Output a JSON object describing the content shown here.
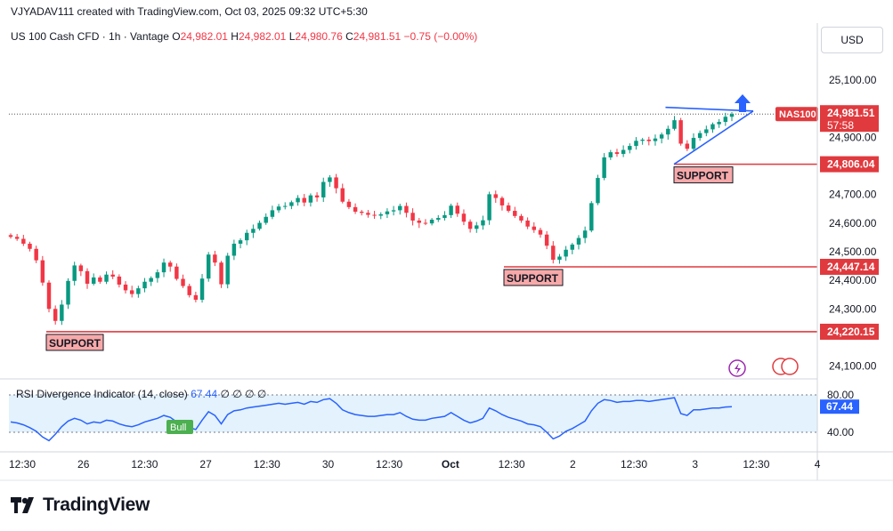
{
  "header": {
    "attribution": "VJYADAV111 created with TradingView.com, Oct 03, 2025 09:32 UTC+5:30",
    "symbol_desc": "US 100 Cash CFD · 1h · Vantage",
    "o_label": "O",
    "o_value": "24,982.01",
    "h_label": "H",
    "h_value": "24,982.01",
    "l_label": "L",
    "l_value": "24,980.76",
    "c_label": "C",
    "c_value": "24,981.51",
    "change": "−0.75 (−0.00%)"
  },
  "currency_button": "USD",
  "price_scale": {
    "ticks": [
      "25,100.00",
      "24,900.00",
      "24,700.00",
      "24,600.00",
      "24,500.00",
      "24,400.00",
      "24,300.00",
      "24,100.00"
    ],
    "tick_values": [
      25100,
      24900,
      24700,
      24600,
      24500,
      24400,
      24300,
      24100
    ],
    "symbol_tag": "NAS100",
    "last_price": "24,981.51",
    "last_value": 24981.51,
    "countdown": "57:58"
  },
  "time_axis": {
    "labels": [
      "12:30",
      "26",
      "12:30",
      "27",
      "12:30",
      "30",
      "12:30",
      "Oct",
      "12:30",
      "2",
      "12:30",
      "3",
      "12:30",
      "4"
    ],
    "bold": [
      false,
      false,
      false,
      false,
      false,
      false,
      false,
      true,
      false,
      false,
      false,
      false,
      false,
      false
    ]
  },
  "support_levels": [
    {
      "label": "SUPPORT",
      "price": "24,806.04",
      "value": 24806.04
    },
    {
      "label": "SUPPORT",
      "price": "24,447.14",
      "value": 24447.14
    },
    {
      "label": "SUPPORT",
      "price": "24,220.15",
      "value": 24220.15
    }
  ],
  "rsi": {
    "name": "RSI Divergence Indicator",
    "params": "(14, close)",
    "value": "67.44",
    "value_num": 67.44,
    "placeholders": "∅ ∅ ∅ ∅",
    "upper_band": "80.00",
    "lower_band": "40.00",
    "bull_label": "Bull"
  },
  "colors": {
    "up": "#089981",
    "down": "#f23645",
    "support": "#e03a3e",
    "rsi": "#2962ff",
    "band_fill": "#e3f2fd",
    "label_bg": "#f7a9a9",
    "bull": "#4caf50"
  },
  "icons": [
    "lightning-icon",
    "us-flag-icon",
    "up-arrow-icon",
    "tradingview-logo-icon"
  ],
  "brand": {
    "name": "TradingView"
  },
  "chart_data": [
    {
      "type": "candlestick",
      "title": "",
      "ylim": [
        24080,
        25200
      ],
      "trendline": "ascending triangle into last price (24,981.51)",
      "closes": [
        24552,
        24545,
        24528,
        24510,
        24470,
        24392,
        24300,
        24258,
        24315,
        24398,
        24452,
        24432,
        24388,
        24410,
        24395,
        24420,
        24413,
        24385,
        24365,
        24352,
        24372,
        24395,
        24408,
        24428,
        24462,
        24448,
        24405,
        24380,
        24348,
        24332,
        24406,
        24490,
        24462,
        24386,
        24486,
        24528,
        24540,
        24566,
        24580,
        24601,
        24622,
        24645,
        24658,
        24660,
        24673,
        24688,
        24672,
        24697,
        24690,
        24744,
        24760,
        24722,
        24675,
        24656,
        24640,
        24636,
        24629,
        24626,
        24631,
        24641,
        24645,
        24660,
        24636,
        24609,
        24601,
        24599,
        24612,
        24618,
        24628,
        24661,
        24633,
        24605,
        24580,
        24592,
        24610,
        24701,
        24688,
        24662,
        24643,
        24625,
        24609,
        24588,
        24576,
        24560,
        24521,
        24472,
        24483,
        24507,
        24525,
        24548,
        24574,
        24670,
        24758,
        24830,
        24848,
        24842,
        24856,
        24870,
        24888,
        24892,
        24887,
        24896,
        24910,
        24930,
        24960,
        24878,
        24860,
        24898,
        24915,
        24928,
        24946,
        24954,
        24972,
        24981.51
      ],
      "rsi_values": [
        51,
        50,
        48,
        45,
        41,
        35,
        31,
        38,
        46,
        52,
        55,
        53,
        49,
        51,
        50,
        53,
        52,
        49,
        47,
        46,
        48,
        51,
        53,
        55,
        58,
        56,
        51,
        48,
        45,
        43,
        53,
        62,
        58,
        49,
        59,
        63,
        64,
        66,
        67,
        68,
        69,
        70,
        71,
        70,
        71,
        72,
        70,
        73,
        72,
        75,
        76,
        71,
        64,
        61,
        59,
        58,
        57,
        57,
        58,
        59,
        59,
        61,
        57,
        54,
        53,
        53,
        55,
        56,
        57,
        61,
        57,
        53,
        50,
        52,
        55,
        66,
        63,
        59,
        56,
        54,
        52,
        49,
        48,
        46,
        40,
        33,
        36,
        41,
        44,
        48,
        52,
        63,
        71,
        75,
        74,
        72,
        73,
        73,
        74,
        74,
        73,
        74,
        75,
        76,
        77,
        60,
        58,
        64,
        64,
        65,
        66,
        66,
        67,
        67.44
      ]
    }
  ]
}
